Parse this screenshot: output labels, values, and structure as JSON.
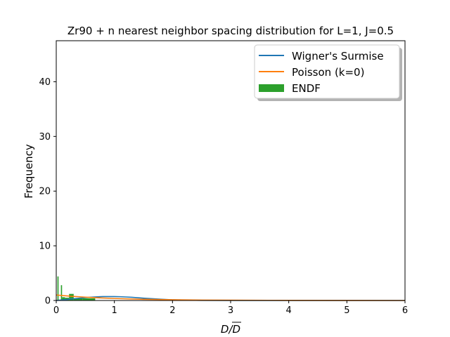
{
  "chart_data": {
    "type": "histogram",
    "title": "Zr90 + n nearest neighbor spacing distribution for L=1, J=0.5",
    "xlabel": "D",
    "xlabel_bar": "D",
    "ylabel": "Frequency",
    "xlim": [
      0,
      6
    ],
    "ylim": [
      0,
      47.5
    ],
    "xticks": [
      0,
      1,
      2,
      3,
      4,
      5,
      6
    ],
    "xtick_labels": [
      "0",
      "1",
      "2",
      "3",
      "4",
      "5",
      "6"
    ],
    "yticks": [
      0,
      10,
      20,
      30,
      40
    ],
    "ytick_labels": [
      "0",
      "10",
      "20",
      "30",
      "40"
    ],
    "grid": false,
    "legend_position": "top-right",
    "series": [
      {
        "name": "Wigner's Surmise",
        "kind": "line",
        "color": "#1f77b4",
        "x": [
          0,
          0.1,
          0.2,
          0.3,
          0.4,
          0.5,
          0.6,
          0.7,
          0.8,
          0.9,
          1.0,
          1.1,
          1.2,
          1.3,
          1.4,
          1.5,
          1.6,
          1.8,
          2.0,
          2.2,
          2.5,
          3.0,
          4.0,
          5.0,
          6.0
        ],
        "y": [
          0,
          0.1,
          0.2,
          0.32,
          0.43,
          0.53,
          0.61,
          0.67,
          0.71,
          0.72,
          0.72,
          0.69,
          0.64,
          0.58,
          0.51,
          0.43,
          0.36,
          0.23,
          0.13,
          0.07,
          0.02,
          0.0,
          0.0,
          0.0,
          0.0
        ]
      },
      {
        "name": "Poisson (k=0)",
        "kind": "line",
        "color": "#ff7f0e",
        "x": [
          0,
          0.25,
          0.5,
          0.75,
          1.0,
          1.25,
          1.5,
          2.0,
          2.5,
          3.0,
          4.0,
          5.0,
          6.0
        ],
        "y": [
          1.0,
          0.78,
          0.61,
          0.47,
          0.37,
          0.29,
          0.22,
          0.14,
          0.08,
          0.05,
          0.02,
          0.01,
          0.0
        ],
        "y_note": "scaled to axis units"
      },
      {
        "name": "ENDF",
        "kind": "bar",
        "color": "#2ca02c",
        "bins": [
          {
            "x0": 0.02,
            "x1": 0.04,
            "value": 4.4
          },
          {
            "x0": 0.08,
            "x1": 0.1,
            "value": 2.8
          },
          {
            "x0": 0.1,
            "x1": 0.15,
            "value": 0.6
          },
          {
            "x0": 0.15,
            "x1": 0.22,
            "value": 0.5
          },
          {
            "x0": 0.22,
            "x1": 0.3,
            "value": 1.2
          },
          {
            "x0": 0.3,
            "x1": 0.45,
            "value": 0.4
          },
          {
            "x0": 0.45,
            "x1": 0.67,
            "value": 0.4
          }
        ]
      }
    ]
  }
}
